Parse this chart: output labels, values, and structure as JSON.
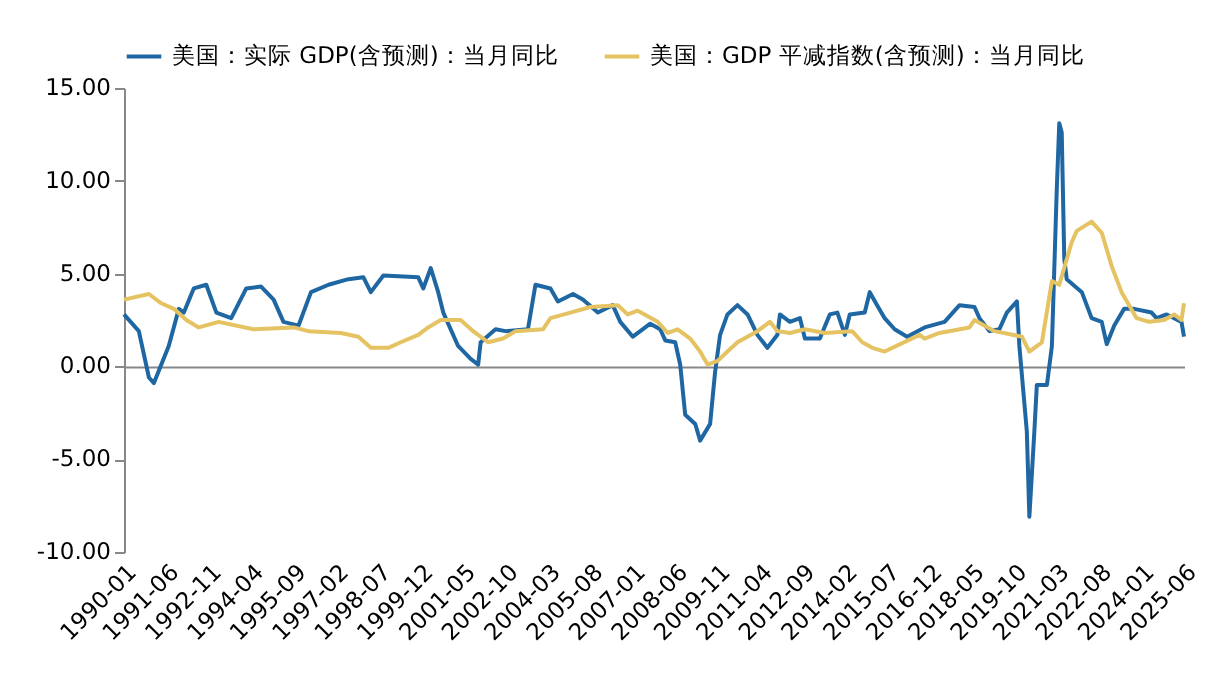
{
  "chart_data": {
    "type": "line",
    "legend": "top",
    "xlim": [
      "1990-01",
      "2025-06"
    ],
    "xticks": [
      "1990-01",
      "1991-06",
      "1992-11",
      "1994-04",
      "1995-09",
      "1997-02",
      "1998-07",
      "1999-12",
      "2001-05",
      "2002-10",
      "2004-03",
      "2005-08",
      "2007-01",
      "2008-06",
      "2009-11",
      "2011-04",
      "2012-09",
      "2014-02",
      "2015-07",
      "2016-12",
      "2018-05",
      "2019-10",
      "2021-03",
      "2022-08",
      "2024-01",
      "2025-06"
    ],
    "ylim": [
      -10,
      15
    ],
    "yticks": [
      {
        "value": -10,
        "label": "-10.00"
      },
      {
        "value": -5,
        "label": "-5.00"
      },
      {
        "value": 0,
        "label": "0.00"
      },
      {
        "value": 5,
        "label": "5.00"
      },
      {
        "value": 10,
        "label": "10.00"
      },
      {
        "value": 15,
        "label": "15.00"
      }
    ],
    "series": [
      {
        "name": "美国：实际 GDP(含预测)：当月同比",
        "color": "#1f67a3",
        "x": [
          "1990-01",
          "1990-07",
          "1990-11",
          "1991-01",
          "1991-07",
          "1991-11",
          "1992-01",
          "1992-05",
          "1992-10",
          "1993-02",
          "1993-08",
          "1994-02",
          "1994-08",
          "1995-01",
          "1995-05",
          "1995-11",
          "1996-04",
          "1996-11",
          "1997-07",
          "1998-01",
          "1998-04",
          "1998-09",
          "1999-11",
          "2000-01",
          "2000-04",
          "2000-07",
          "2000-09",
          "2001-03",
          "2001-08",
          "2001-11",
          "2001-12",
          "2002-06",
          "2002-10",
          "2003-07",
          "2003-10",
          "2004-04",
          "2004-07",
          "2005-01",
          "2005-05",
          "2005-11",
          "2006-05",
          "2006-08",
          "2007-01",
          "2007-05",
          "2007-08",
          "2007-12",
          "2008-02",
          "2008-06",
          "2008-08",
          "2008-10",
          "2009-02",
          "2009-04",
          "2009-08",
          "2009-10",
          "2009-12",
          "2010-03",
          "2010-07",
          "2010-11",
          "2011-03",
          "2011-07",
          "2011-11",
          "2011-12",
          "2012-04",
          "2012-08",
          "2012-10",
          "2013-04",
          "2013-08",
          "2013-11",
          "2014-02",
          "2014-04",
          "2014-10",
          "2014-12",
          "2015-03",
          "2015-06",
          "2015-10",
          "2016-03",
          "2016-10",
          "2017-06",
          "2017-12",
          "2018-06",
          "2018-08",
          "2018-12",
          "2019-04",
          "2019-07",
          "2019-11",
          "2019-12",
          "2020-03",
          "2020-04",
          "2020-06",
          "2020-07",
          "2020-11",
          "2021-01",
          "2021-03",
          "2021-04",
          "2021-05",
          "2021-06",
          "2021-07",
          "2022-01",
          "2022-05",
          "2022-09",
          "2022-11",
          "2023-02",
          "2023-06",
          "2023-10",
          "2024-05",
          "2024-07",
          "2024-11",
          "2025-05",
          "2025-06"
        ],
        "values": [
          2.8,
          1.9,
          -0.6,
          -0.9,
          1.1,
          3.1,
          2.9,
          4.2,
          4.4,
          2.9,
          2.6,
          4.2,
          4.3,
          3.6,
          2.4,
          2.2,
          4.0,
          4.4,
          4.7,
          4.8,
          4.0,
          4.9,
          4.8,
          4.2,
          5.3,
          4.0,
          2.9,
          1.1,
          0.4,
          0.1,
          1.3,
          2.0,
          1.9,
          2.0,
          4.4,
          4.2,
          3.5,
          3.9,
          3.6,
          2.9,
          3.3,
          2.4,
          1.6,
          2.0,
          2.3,
          2.0,
          1.4,
          1.3,
          0.1,
          -2.6,
          -3.1,
          -4.0,
          -3.1,
          -0.3,
          1.7,
          2.8,
          3.3,
          2.8,
          1.7,
          1.0,
          1.7,
          2.8,
          2.4,
          2.6,
          1.5,
          1.5,
          2.8,
          2.9,
          1.7,
          2.8,
          2.9,
          4.0,
          3.3,
          2.6,
          2.0,
          1.6,
          2.1,
          2.4,
          3.3,
          3.2,
          2.6,
          1.9,
          2.0,
          2.9,
          3.5,
          1.1,
          -3.5,
          -8.1,
          -3.5,
          -1.0,
          -1.0,
          1.1,
          9.5,
          13.1,
          12.6,
          5.8,
          4.7,
          4.0,
          2.6,
          2.4,
          1.2,
          2.2,
          3.1,
          3.1,
          2.9,
          2.6,
          2.8,
          2.4,
          1.6
        ]
      },
      {
        "name": "美国：GDP 平减指数(含预测)：当月同比",
        "color": "#e5c362",
        "x": [
          "1990-01",
          "1990-11",
          "1991-04",
          "1991-09",
          "1992-02",
          "1992-07",
          "1993-03",
          "1994-05",
          "1995-09",
          "1996-03",
          "1997-04",
          "1997-11",
          "1998-04",
          "1998-11",
          "1999-04",
          "1999-11",
          "2000-03",
          "2000-08",
          "2001-04",
          "2001-09",
          "2002-03",
          "2002-09",
          "2003-02",
          "2004-01",
          "2004-04",
          "2004-12",
          "2005-08",
          "2006-07",
          "2006-11",
          "2007-03",
          "2007-11",
          "2008-03",
          "2008-07",
          "2008-12",
          "2009-04",
          "2009-07",
          "2009-11",
          "2010-03",
          "2010-07",
          "2011-03",
          "2011-08",
          "2011-11",
          "2012-04",
          "2012-10",
          "2013-06",
          "2014-05",
          "2014-09",
          "2015-01",
          "2015-06",
          "2016-08",
          "2016-10",
          "2017-04",
          "2018-04",
          "2018-06",
          "2019-02",
          "2020-01",
          "2020-04",
          "2020-09",
          "2021-01",
          "2021-04",
          "2021-09",
          "2021-11",
          "2022-05",
          "2022-09",
          "2023-01",
          "2023-05",
          "2023-08",
          "2023-11",
          "2024-04",
          "2024-10",
          "2025-02",
          "2025-05",
          "2025-06"
        ],
        "values": [
          3.6,
          3.9,
          3.4,
          3.1,
          2.5,
          2.1,
          2.4,
          2.0,
          2.1,
          1.9,
          1.8,
          1.6,
          1.0,
          1.0,
          1.3,
          1.7,
          2.1,
          2.5,
          2.5,
          1.9,
          1.3,
          1.5,
          1.9,
          2.0,
          2.6,
          2.9,
          3.2,
          3.3,
          2.8,
          3.0,
          2.4,
          1.8,
          2.0,
          1.5,
          0.8,
          0.1,
          0.3,
          0.8,
          1.3,
          1.9,
          2.4,
          1.9,
          1.8,
          2.0,
          1.8,
          1.9,
          1.3,
          1.0,
          0.8,
          1.7,
          1.5,
          1.8,
          2.1,
          2.5,
          1.9,
          1.6,
          0.8,
          1.3,
          4.6,
          4.4,
          6.7,
          7.3,
          7.8,
          7.2,
          5.4,
          4.0,
          3.3,
          2.6,
          2.4,
          2.5,
          2.8,
          2.5,
          3.4
        ]
      }
    ]
  }
}
